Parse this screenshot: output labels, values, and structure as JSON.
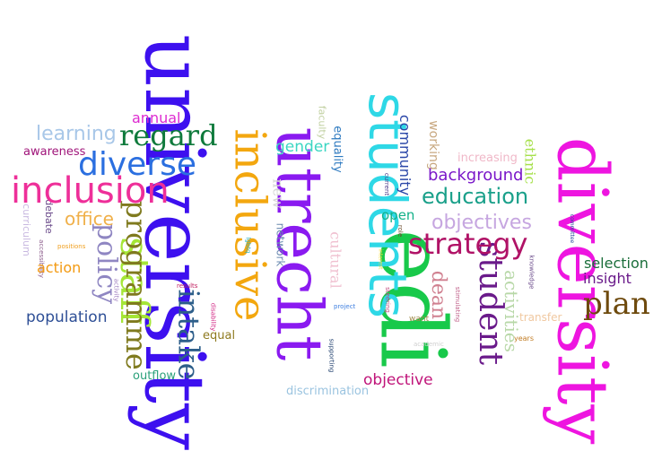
{
  "words": [
    {
      "text": "university",
      "color": "#3d10ef"
    },
    {
      "text": "diversity",
      "color": "#ee15e0"
    },
    {
      "text": "edi",
      "color": "#18c94a"
    },
    {
      "text": "utrecht",
      "color": "#8a1af0"
    },
    {
      "text": "students",
      "color": "#2ed8e6"
    },
    {
      "text": "student",
      "color": "#6a1a8a"
    },
    {
      "text": "inclusion",
      "color": "#ee2f99"
    },
    {
      "text": "inclusive",
      "color": "#a5e637"
    },
    {
      "text": "staff",
      "color": "#f3a70f"
    },
    {
      "text": "diverse",
      "color": "#2b6fe0"
    },
    {
      "text": "regard",
      "color": "#0f7a3c"
    },
    {
      "text": "programme",
      "color": "#7f7a1e"
    },
    {
      "text": "policy",
      "color": "#8f86c2"
    },
    {
      "text": "intake",
      "color": "#2d5e8a"
    },
    {
      "text": "strategy",
      "color": "#b01266"
    },
    {
      "text": "plan",
      "color": "#6e4a0d"
    },
    {
      "text": "education",
      "color": "#1aa08a"
    },
    {
      "text": "objectives",
      "color": "#c6a6e0"
    },
    {
      "text": "background",
      "color": "#7a17c9"
    },
    {
      "text": "learning",
      "color": "#a8c7e8"
    },
    {
      "text": "annual",
      "color": "#dd2ad0"
    },
    {
      "text": "awareness",
      "color": "#a0157a"
    },
    {
      "text": "office",
      "color": "#f0b04a"
    },
    {
      "text": "action",
      "color": "#f39a12"
    },
    {
      "text": "population",
      "color": "#2e4f96"
    },
    {
      "text": "outflow",
      "color": "#2aa07a"
    },
    {
      "text": "equal",
      "color": "#8f7a20"
    },
    {
      "text": "objective",
      "color": "#c0157a"
    },
    {
      "text": "discrimination",
      "color": "#9bc4e0"
    },
    {
      "text": "gender",
      "color": "#3ad6c2"
    },
    {
      "text": "community",
      "color": "#2b47a8"
    },
    {
      "text": "working",
      "color": "#c8a880"
    },
    {
      "text": "increasing",
      "color": "#f0b8c8"
    },
    {
      "text": "ethnic",
      "color": "#a6e04a"
    },
    {
      "text": "open",
      "color": "#12b088"
    },
    {
      "text": "selection",
      "color": "#1a6e3a"
    },
    {
      "text": "insight",
      "color": "#6a1a8a"
    },
    {
      "text": "activities",
      "color": "#b8d8a8"
    },
    {
      "text": "transfer",
      "color": "#f0c8a0"
    },
    {
      "text": "dean",
      "color": "#d08090"
    },
    {
      "text": "network",
      "color": "#6a8ab0"
    },
    {
      "text": "new",
      "color": "#d4d4d4"
    },
    {
      "text": "cultural",
      "color": "#f0c0d0"
    },
    {
      "text": "equality",
      "color": "#2e7ac0"
    },
    {
      "text": "faculty",
      "color": "#c0d0a0"
    },
    {
      "text": "curriculum",
      "color": "#c8b8e0"
    },
    {
      "text": "debate",
      "color": "#6a4a8a"
    },
    {
      "text": "accessibility",
      "color": "#8a5a8a"
    },
    {
      "text": "positions",
      "color": "#f0a020"
    },
    {
      "text": "results",
      "color": "#c02060"
    },
    {
      "text": "activity",
      "color": "#a080c0"
    },
    {
      "text": "disability",
      "color": "#d02080"
    },
    {
      "text": "lgbtq",
      "color": "#2ab0c0"
    },
    {
      "text": "project",
      "color": "#4080e0"
    },
    {
      "text": "role",
      "color": "#6a4a2a"
    },
    {
      "text": "current",
      "color": "#4a3a8a"
    },
    {
      "text": "academic",
      "color": "#d0d0d0"
    },
    {
      "text": "steering",
      "color": "#c04a80"
    },
    {
      "text": "want",
      "color": "#a08a4a"
    },
    {
      "text": "stimulating",
      "color": "#c0608a"
    },
    {
      "text": "years",
      "color": "#c07a20"
    },
    {
      "text": "knowledge",
      "color": "#6a4a8a"
    },
    {
      "text": "committee",
      "color": "#2a4a9a"
    },
    {
      "text": "supporting",
      "color": "#1a3a6a"
    },
    {
      "text": "interest",
      "color": "#f0e040"
    }
  ]
}
